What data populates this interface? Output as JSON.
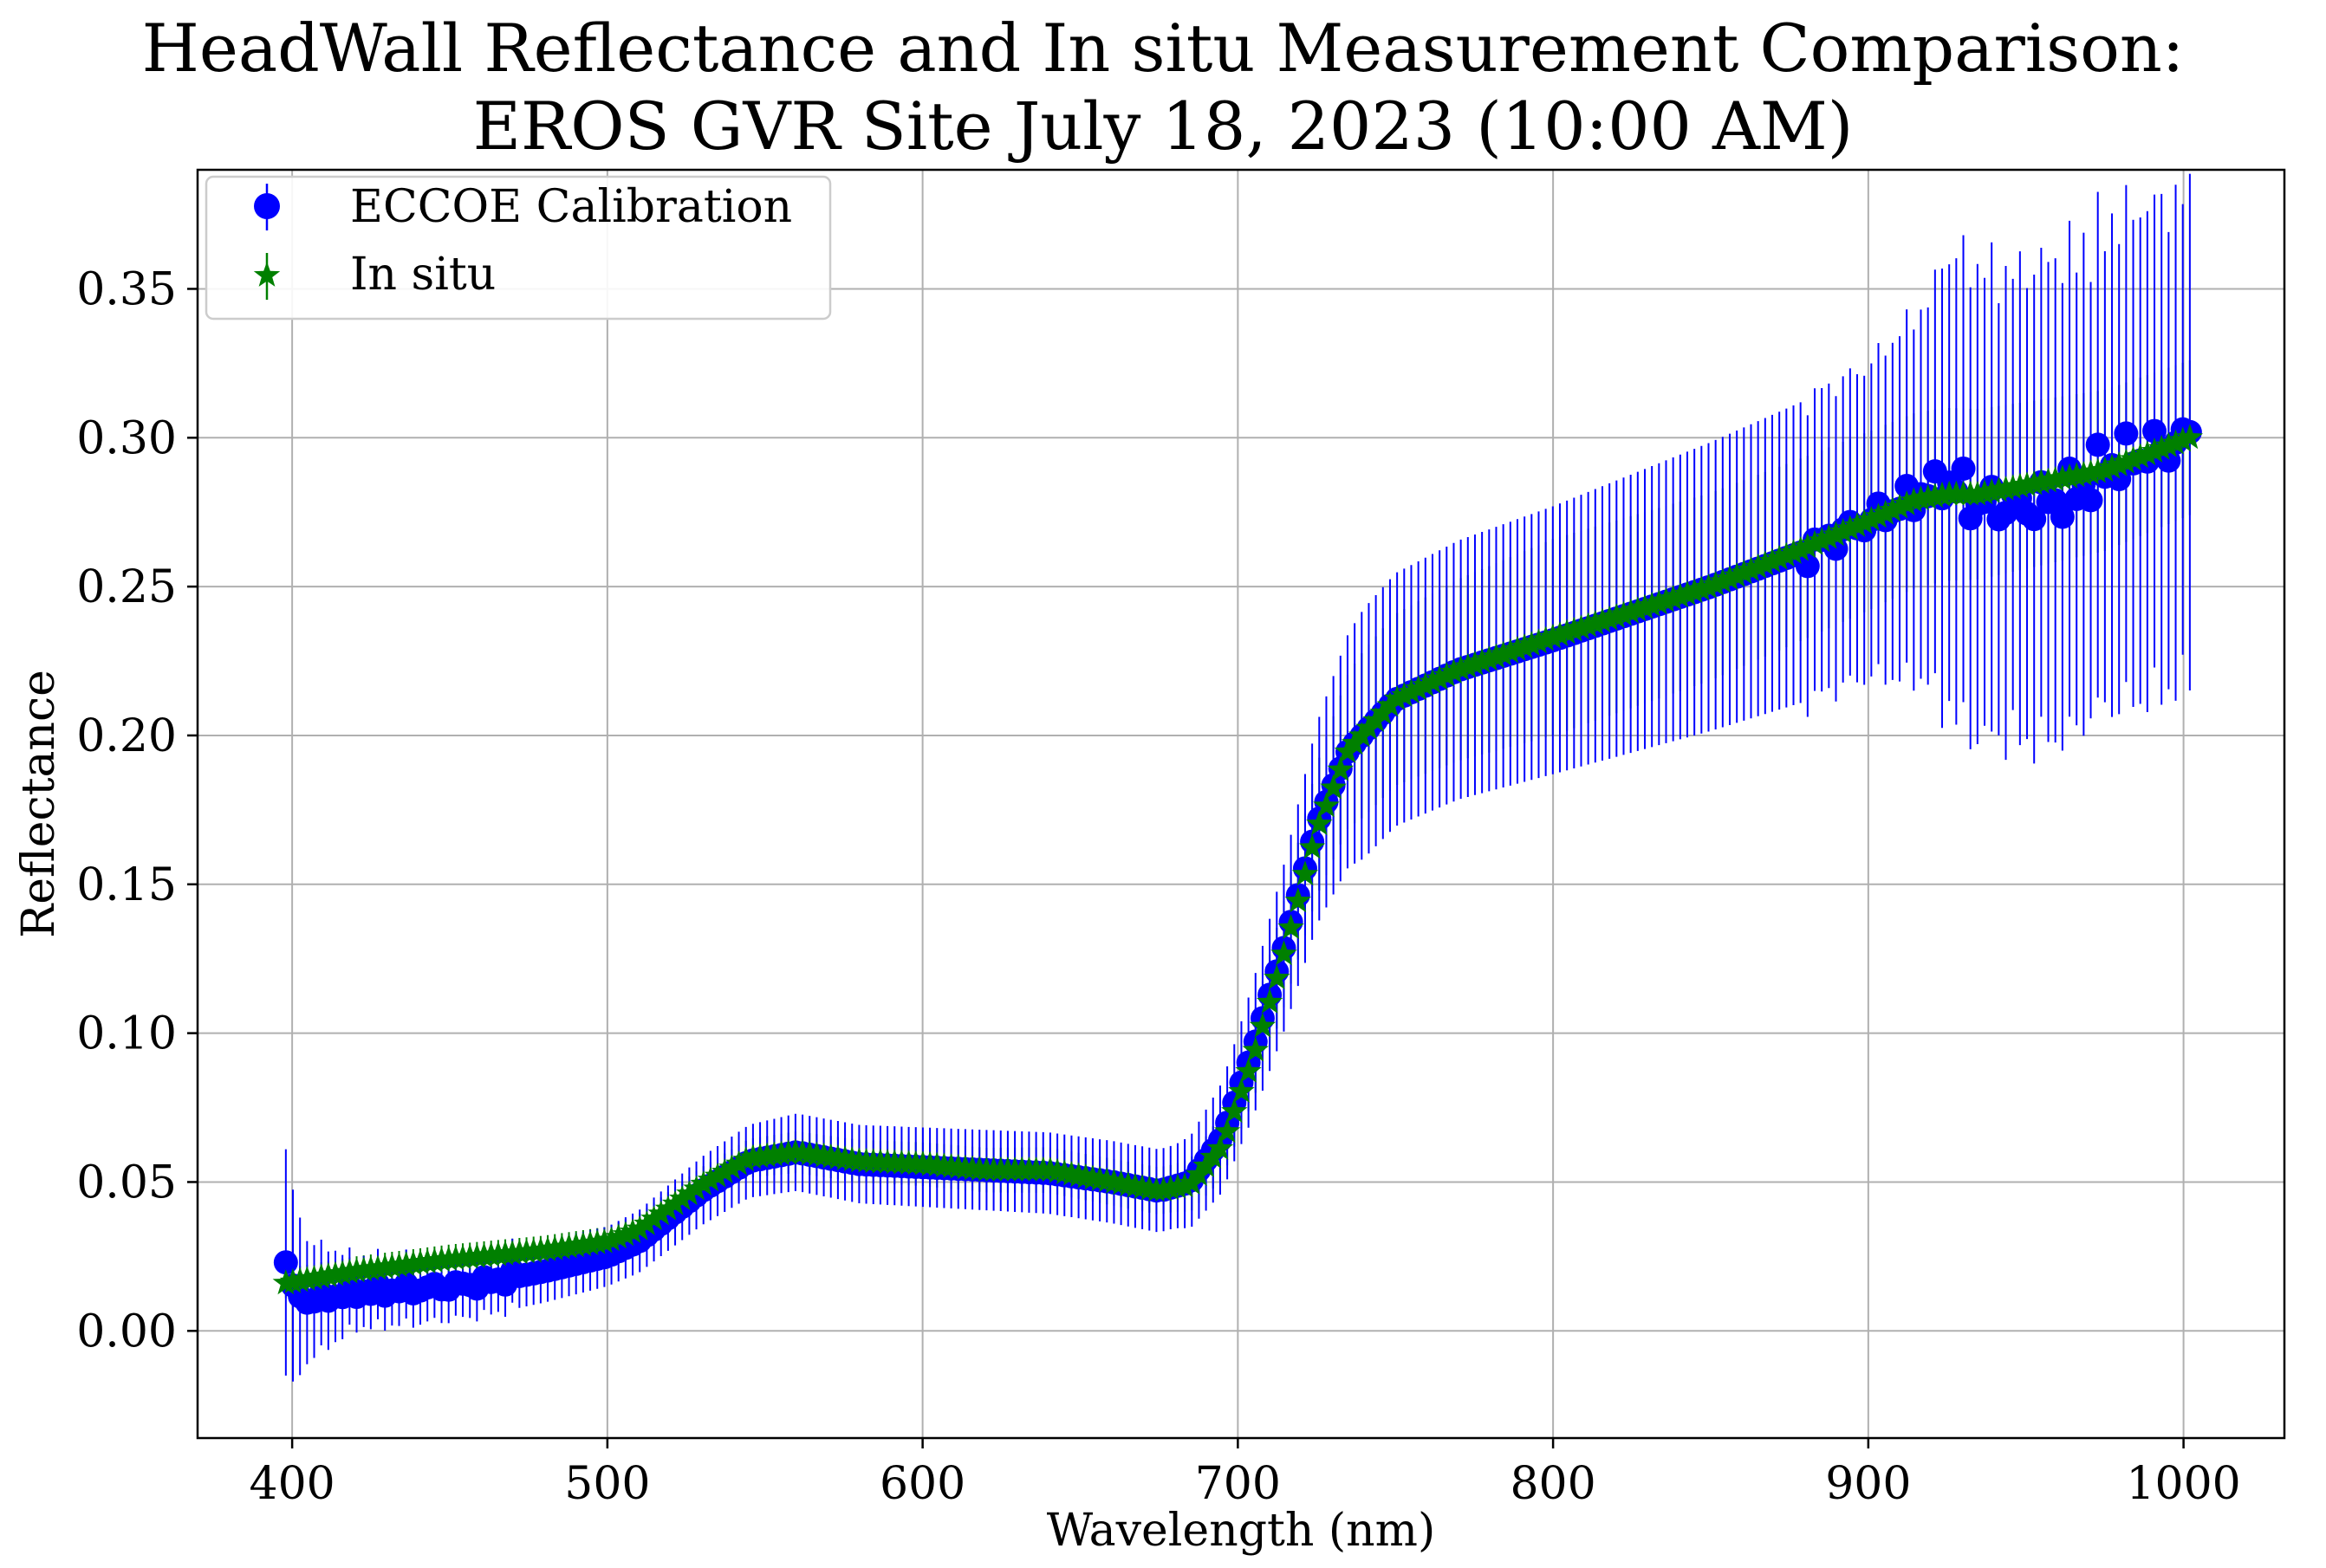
{
  "chart_data": {
    "type": "scatter",
    "title_line1": "HeadWall Reflectance and In situ Measurement Comparison:",
    "title_line2": "EROS GVR Site July 18, 2023 (10:00 AM)",
    "xlabel": "Wavelength (nm)",
    "ylabel": "Reflectance",
    "xlim": [
      370,
      1032
    ],
    "ylim": [
      -0.036,
      0.39
    ],
    "xticks": [
      400,
      500,
      600,
      700,
      800,
      900,
      1000
    ],
    "xtick_labels": [
      "400",
      "500",
      "600",
      "700",
      "800",
      "900",
      "1000"
    ],
    "yticks": [
      0.0,
      0.05,
      0.1,
      0.15,
      0.2,
      0.25,
      0.3,
      0.35
    ],
    "ytick_labels": [
      "0.00",
      "0.05",
      "0.10",
      "0.15",
      "0.20",
      "0.25",
      "0.30",
      "0.35"
    ],
    "grid": true,
    "legend_position": "upper-left",
    "wavelength_range": [
      398,
      1002
    ],
    "band_count": 270,
    "series": [
      {
        "name": "ECCOE Calibration",
        "marker": "circle",
        "color": "#0000ff",
        "control_points": [
          [
            398,
            0.023
          ],
          [
            400,
            0.014
          ],
          [
            405,
            0.01
          ],
          [
            420,
            0.013
          ],
          [
            440,
            0.014
          ],
          [
            460,
            0.016
          ],
          [
            480,
            0.02
          ],
          [
            500,
            0.025
          ],
          [
            510,
            0.03
          ],
          [
            530,
            0.047
          ],
          [
            545,
            0.057
          ],
          [
            560,
            0.06
          ],
          [
            580,
            0.056
          ],
          [
            600,
            0.055
          ],
          [
            620,
            0.054
          ],
          [
            640,
            0.053
          ],
          [
            660,
            0.05
          ],
          [
            675,
            0.047
          ],
          [
            685,
            0.05
          ],
          [
            695,
            0.065
          ],
          [
            705,
            0.095
          ],
          [
            715,
            0.13
          ],
          [
            725,
            0.17
          ],
          [
            735,
            0.195
          ],
          [
            750,
            0.212
          ],
          [
            770,
            0.222
          ],
          [
            800,
            0.232
          ],
          [
            850,
            0.25
          ],
          [
            880,
            0.262
          ],
          [
            900,
            0.272
          ],
          [
            915,
            0.28
          ],
          [
            925,
            0.285
          ],
          [
            935,
            0.278
          ],
          [
            950,
            0.277
          ],
          [
            965,
            0.281
          ],
          [
            975,
            0.29
          ],
          [
            985,
            0.294
          ],
          [
            995,
            0.297
          ],
          [
            1002,
            0.3
          ]
        ],
        "error_control_points": [
          [
            398,
            0.038
          ],
          [
            405,
            0.02
          ],
          [
            420,
            0.012
          ],
          [
            500,
            0.01
          ],
          [
            560,
            0.013
          ],
          [
            680,
            0.014
          ],
          [
            700,
            0.02
          ],
          [
            740,
            0.042
          ],
          [
            800,
            0.045
          ],
          [
            900,
            0.052
          ],
          [
            930,
            0.07
          ],
          [
            1002,
            0.075
          ]
        ]
      },
      {
        "name": "In situ",
        "marker": "star",
        "color": "#008000",
        "control_points": [
          [
            398,
            0.016
          ],
          [
            420,
            0.02
          ],
          [
            450,
            0.024
          ],
          [
            480,
            0.027
          ],
          [
            500,
            0.03
          ],
          [
            510,
            0.034
          ],
          [
            530,
            0.049
          ],
          [
            545,
            0.058
          ],
          [
            560,
            0.06
          ],
          [
            580,
            0.057
          ],
          [
            600,
            0.056
          ],
          [
            620,
            0.054
          ],
          [
            640,
            0.054
          ],
          [
            660,
            0.05
          ],
          [
            675,
            0.047
          ],
          [
            685,
            0.049
          ],
          [
            695,
            0.062
          ],
          [
            705,
            0.092
          ],
          [
            715,
            0.128
          ],
          [
            725,
            0.168
          ],
          [
            735,
            0.195
          ],
          [
            750,
            0.212
          ],
          [
            770,
            0.222
          ],
          [
            800,
            0.233
          ],
          [
            850,
            0.25
          ],
          [
            880,
            0.263
          ],
          [
            900,
            0.272
          ],
          [
            915,
            0.279
          ],
          [
            925,
            0.281
          ],
          [
            935,
            0.281
          ],
          [
            950,
            0.284
          ],
          [
            975,
            0.289
          ],
          [
            1002,
            0.3
          ]
        ],
        "error_control_points": [
          [
            398,
            0.005
          ],
          [
            500,
            0.005
          ],
          [
            560,
            0.007
          ],
          [
            680,
            0.008
          ],
          [
            700,
            0.012
          ],
          [
            740,
            0.028
          ],
          [
            800,
            0.033
          ],
          [
            900,
            0.03
          ],
          [
            1002,
            0.026
          ]
        ]
      }
    ]
  }
}
